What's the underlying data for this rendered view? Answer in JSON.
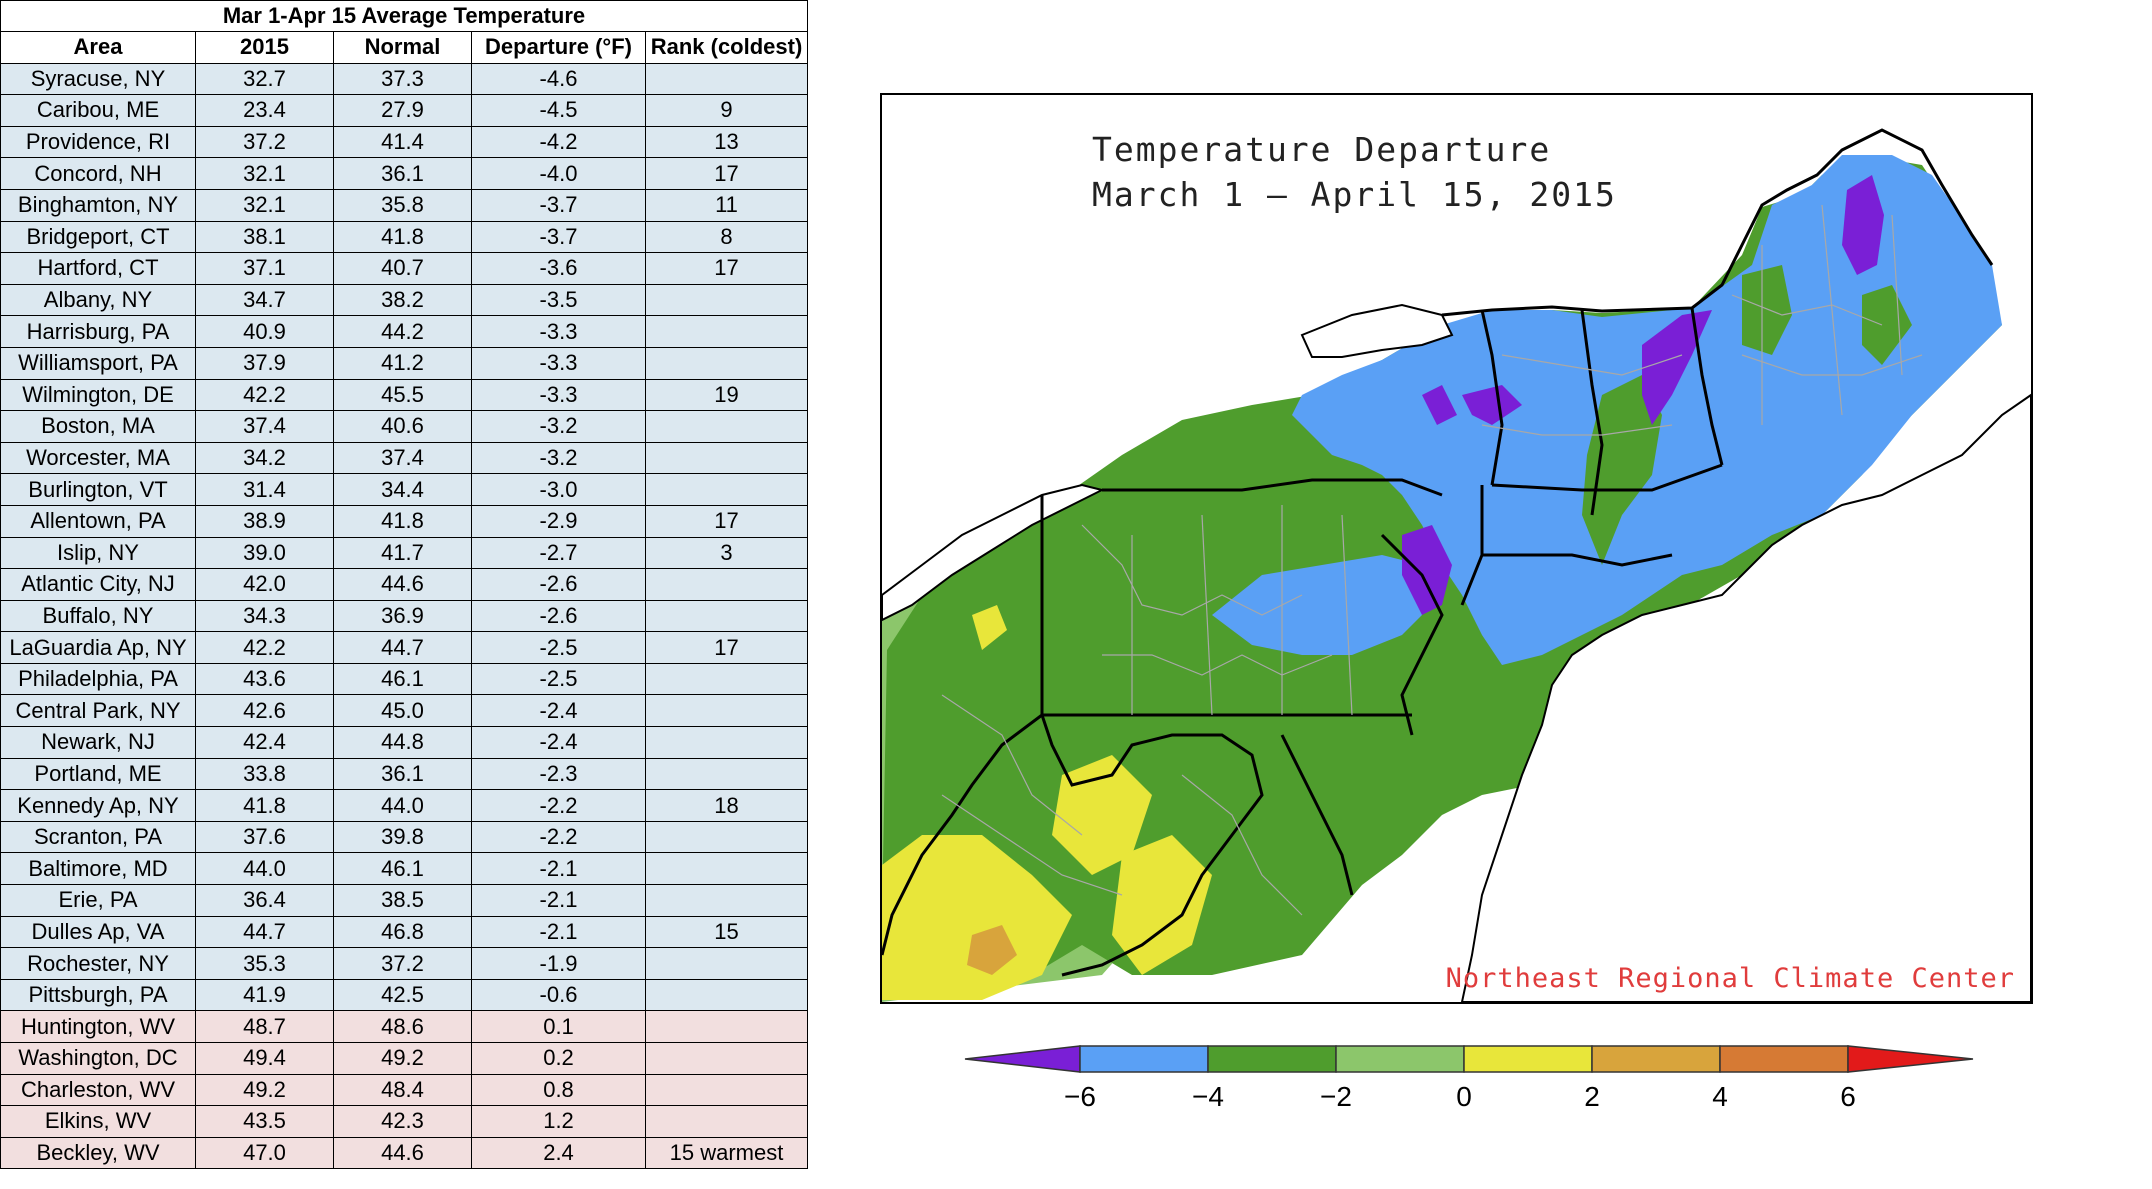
{
  "chart_data": [
    {
      "type": "table",
      "title": "Mar 1-Apr 15 Average Temperature",
      "columns": [
        "Area",
        "2015",
        "Normal",
        "Departure (°F)",
        "Rank (coldest)"
      ],
      "rows": [
        {
          "area": "Syracuse, NY",
          "y2015": "32.7",
          "normal": "37.3",
          "departure": "-4.6",
          "rank": "",
          "kind": "cold"
        },
        {
          "area": "Caribou, ME",
          "y2015": "23.4",
          "normal": "27.9",
          "departure": "-4.5",
          "rank": "9",
          "kind": "cold"
        },
        {
          "area": "Providence, RI",
          "y2015": "37.2",
          "normal": "41.4",
          "departure": "-4.2",
          "rank": "13",
          "kind": "cold"
        },
        {
          "area": "Concord, NH",
          "y2015": "32.1",
          "normal": "36.1",
          "departure": "-4.0",
          "rank": "17",
          "kind": "cold"
        },
        {
          "area": "Binghamton, NY",
          "y2015": "32.1",
          "normal": "35.8",
          "departure": "-3.7",
          "rank": "11",
          "kind": "cold"
        },
        {
          "area": "Bridgeport, CT",
          "y2015": "38.1",
          "normal": "41.8",
          "departure": "-3.7",
          "rank": "8",
          "kind": "cold"
        },
        {
          "area": "Hartford, CT",
          "y2015": "37.1",
          "normal": "40.7",
          "departure": "-3.6",
          "rank": "17",
          "kind": "cold"
        },
        {
          "area": "Albany, NY",
          "y2015": "34.7",
          "normal": "38.2",
          "departure": "-3.5",
          "rank": "",
          "kind": "cold"
        },
        {
          "area": "Harrisburg, PA",
          "y2015": "40.9",
          "normal": "44.2",
          "departure": "-3.3",
          "rank": "",
          "kind": "cold"
        },
        {
          "area": "Williamsport, PA",
          "y2015": "37.9",
          "normal": "41.2",
          "departure": "-3.3",
          "rank": "",
          "kind": "cold"
        },
        {
          "area": "Wilmington, DE",
          "y2015": "42.2",
          "normal": "45.5",
          "departure": "-3.3",
          "rank": "19",
          "kind": "cold"
        },
        {
          "area": "Boston, MA",
          "y2015": "37.4",
          "normal": "40.6",
          "departure": "-3.2",
          "rank": "",
          "kind": "cold"
        },
        {
          "area": "Worcester, MA",
          "y2015": "34.2",
          "normal": "37.4",
          "departure": "-3.2",
          "rank": "",
          "kind": "cold"
        },
        {
          "area": "Burlington, VT",
          "y2015": "31.4",
          "normal": "34.4",
          "departure": "-3.0",
          "rank": "",
          "kind": "cold"
        },
        {
          "area": "Allentown, PA",
          "y2015": "38.9",
          "normal": "41.8",
          "departure": "-2.9",
          "rank": "17",
          "kind": "cold"
        },
        {
          "area": "Islip, NY",
          "y2015": "39.0",
          "normal": "41.7",
          "departure": "-2.7",
          "rank": "3",
          "kind": "cold"
        },
        {
          "area": "Atlantic City, NJ",
          "y2015": "42.0",
          "normal": "44.6",
          "departure": "-2.6",
          "rank": "",
          "kind": "cold"
        },
        {
          "area": "Buffalo, NY",
          "y2015": "34.3",
          "normal": "36.9",
          "departure": "-2.6",
          "rank": "",
          "kind": "cold"
        },
        {
          "area": "LaGuardia Ap, NY",
          "y2015": "42.2",
          "normal": "44.7",
          "departure": "-2.5",
          "rank": "17",
          "kind": "cold"
        },
        {
          "area": "Philadelphia, PA",
          "y2015": "43.6",
          "normal": "46.1",
          "departure": "-2.5",
          "rank": "",
          "kind": "cold"
        },
        {
          "area": "Central Park, NY",
          "y2015": "42.6",
          "normal": "45.0",
          "departure": "-2.4",
          "rank": "",
          "kind": "cold"
        },
        {
          "area": "Newark, NJ",
          "y2015": "42.4",
          "normal": "44.8",
          "departure": "-2.4",
          "rank": "",
          "kind": "cold"
        },
        {
          "area": "Portland, ME",
          "y2015": "33.8",
          "normal": "36.1",
          "departure": "-2.3",
          "rank": "",
          "kind": "cold"
        },
        {
          "area": "Kennedy Ap, NY",
          "y2015": "41.8",
          "normal": "44.0",
          "departure": "-2.2",
          "rank": "18",
          "kind": "cold"
        },
        {
          "area": "Scranton, PA",
          "y2015": "37.6",
          "normal": "39.8",
          "departure": "-2.2",
          "rank": "",
          "kind": "cold"
        },
        {
          "area": "Baltimore, MD",
          "y2015": "44.0",
          "normal": "46.1",
          "departure": "-2.1",
          "rank": "",
          "kind": "cold"
        },
        {
          "area": "Erie, PA",
          "y2015": "36.4",
          "normal": "38.5",
          "departure": "-2.1",
          "rank": "",
          "kind": "cold"
        },
        {
          "area": "Dulles Ap, VA",
          "y2015": "44.7",
          "normal": "46.8",
          "departure": "-2.1",
          "rank": "15",
          "kind": "cold"
        },
        {
          "area": "Rochester, NY",
          "y2015": "35.3",
          "normal": "37.2",
          "departure": "-1.9",
          "rank": "",
          "kind": "cold"
        },
        {
          "area": "Pittsburgh, PA",
          "y2015": "41.9",
          "normal": "42.5",
          "departure": "-0.6",
          "rank": "",
          "kind": "cold"
        },
        {
          "area": "Huntington, WV",
          "y2015": "48.7",
          "normal": "48.6",
          "departure": "0.1",
          "rank": "",
          "kind": "warm"
        },
        {
          "area": "Washington, DC",
          "y2015": "49.4",
          "normal": "49.2",
          "departure": "0.2",
          "rank": "",
          "kind": "warm"
        },
        {
          "area": "Charleston, WV",
          "y2015": "49.2",
          "normal": "48.4",
          "departure": "0.8",
          "rank": "",
          "kind": "warm"
        },
        {
          "area": "Elkins, WV",
          "y2015": "43.5",
          "normal": "42.3",
          "departure": "1.2",
          "rank": "",
          "kind": "warm"
        },
        {
          "area": "Beckley, WV",
          "y2015": "47.0",
          "normal": "44.6",
          "departure": "2.4",
          "rank": "15 warmest",
          "kind": "warm"
        }
      ]
    },
    {
      "type": "heatmap",
      "title": "Temperature Departure",
      "subtitle": "March 1 — April 15, 2015",
      "credit": "Northeast Regional Climate Center",
      "colorbar": {
        "ticks": [
          "−6",
          "−4",
          "−2",
          "0",
          "2",
          "4",
          "6"
        ],
        "bins": [
          {
            "range": [
              -8,
              -6
            ],
            "color": "#7a1fd6"
          },
          {
            "range": [
              -6,
              -4
            ],
            "color": "#5aa0f5"
          },
          {
            "range": [
              -4,
              -2
            ],
            "color": "#4f9d2d"
          },
          {
            "range": [
              -2,
              0
            ],
            "color": "#8cc66b"
          },
          {
            "range": [
              0,
              2
            ],
            "color": "#e8e63a"
          },
          {
            "range": [
              2,
              4
            ],
            "color": "#d8a43c"
          },
          {
            "range": [
              4,
              6
            ],
            "color": "#d67a34"
          },
          {
            "range": [
              6,
              8
            ],
            "color": "#e21a1a"
          }
        ]
      }
    }
  ],
  "colors": {
    "cold_row": "#dce8f0",
    "warm_row": "#f2dfdf",
    "credit": "#e03c3c"
  }
}
